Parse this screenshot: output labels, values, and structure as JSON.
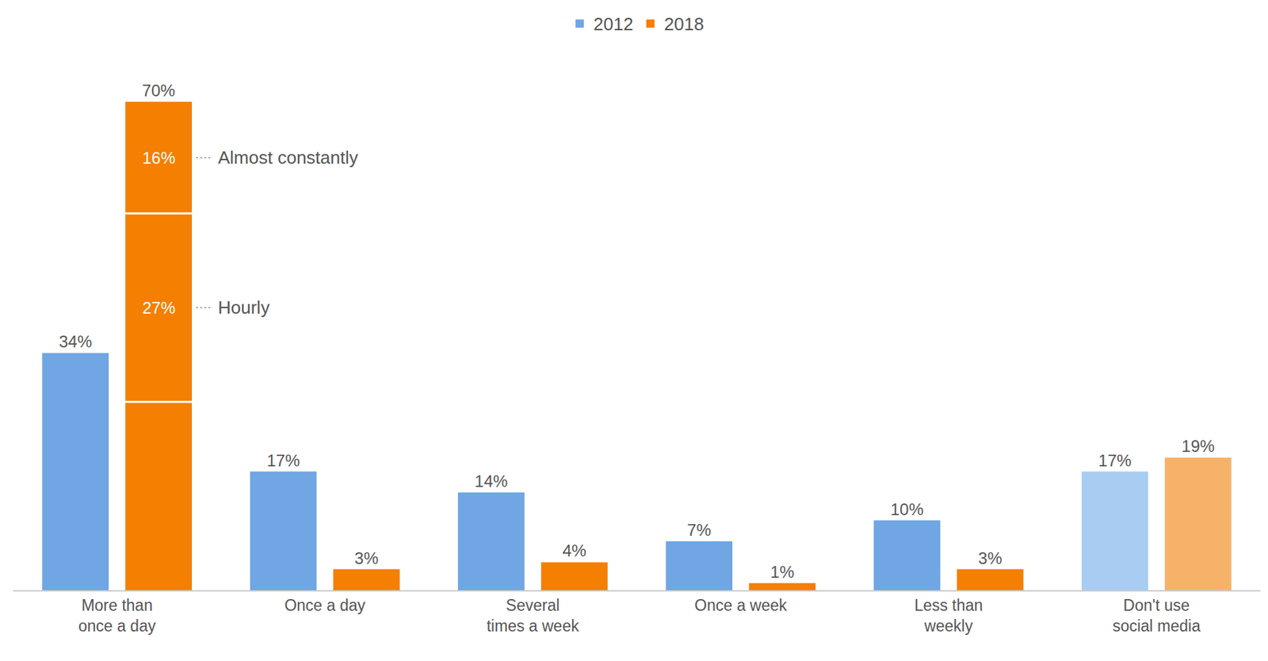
{
  "chart_data": {
    "type": "bar",
    "categories": [
      "More than once a day",
      "Once a day",
      "Several times a week",
      "Once a week",
      "Less than weekly",
      "Don't use social media"
    ],
    "series": [
      {
        "name": "2012",
        "colors": [
          "#6fa6e3",
          "#6fa6e3",
          "#6fa6e3",
          "#6fa6e3",
          "#6fa6e3",
          "#a9cdf2"
        ],
        "values": [
          34,
          17,
          14,
          7,
          10,
          17
        ],
        "value_labels": [
          "34%",
          "17%",
          "14%",
          "7%",
          "10%",
          "17%"
        ]
      },
      {
        "name": "2018",
        "colors": [
          "#f47f00",
          "#f47f00",
          "#f47f00",
          "#f47f00",
          "#f47f00",
          "#f7b26a"
        ],
        "values": [
          70,
          3,
          4,
          1,
          3,
          19
        ],
        "value_labels": [
          "70%",
          "3%",
          "4%",
          "1%",
          "3%",
          "19%"
        ],
        "segments": {
          "category": "More than once a day",
          "values": [
            27,
            27,
            16
          ],
          "value_labels": [
            null,
            "27%",
            "16%"
          ],
          "labels": [
            null,
            "Hourly",
            "Almost constantly"
          ]
        }
      }
    ],
    "ylim": [
      0,
      70
    ],
    "data_labels": true,
    "tick_labels": "x",
    "grid": false,
    "legend": "top"
  }
}
